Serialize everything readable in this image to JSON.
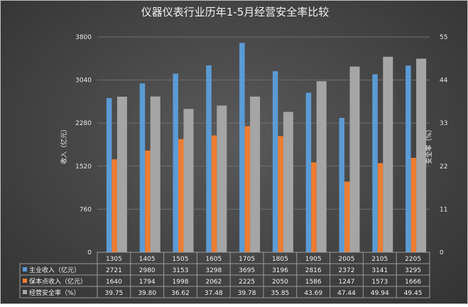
{
  "chart_data": {
    "type": "bar",
    "title": "仪器仪表行业历年1-5月经营安全率比较",
    "ylabel": "收入（亿元）",
    "y2label": "安全率（%）",
    "ylim": [
      0,
      3800
    ],
    "y2lim": [
      0,
      55
    ],
    "yticks": [
      "0",
      "760",
      "1520",
      "2280",
      "3040",
      "3800"
    ],
    "y2ticks": [
      "0",
      "11",
      "22",
      "33",
      "44",
      "55"
    ],
    "categories": [
      "1305",
      "1405",
      "1505",
      "1605",
      "1705",
      "1805",
      "1905",
      "2005",
      "2105",
      "2205"
    ],
    "series": [
      {
        "name": "主业收入（亿元）",
        "axis": "left",
        "color": "#5b9bd5",
        "values": [
          2721,
          2980,
          3153,
          3298,
          3695,
          3196,
          2816,
          2372,
          3141,
          3295
        ],
        "labels": [
          "2721",
          "2980",
          "3153",
          "3298",
          "3695",
          "3196",
          "2816",
          "2372",
          "3141",
          "3295"
        ]
      },
      {
        "name": "保本点收入（亿元）",
        "axis": "left",
        "color": "#ed7d31",
        "values": [
          1640,
          1794,
          1998,
          2062,
          2225,
          2050,
          1586,
          1247,
          1573,
          1666
        ],
        "labels": [
          "1640",
          "1794",
          "1998",
          "2062",
          "2225",
          "2050",
          "1586",
          "1247",
          "1573",
          "1666"
        ]
      },
      {
        "name": "经营安全率（%）",
        "axis": "right",
        "color": "#a5a5a5",
        "values": [
          39.75,
          39.8,
          36.62,
          37.48,
          39.78,
          35.85,
          43.69,
          47.44,
          49.94,
          49.45
        ],
        "labels": [
          "39.75",
          "39.80",
          "36.62",
          "37.48",
          "39.78",
          "35.85",
          "43.69",
          "47.44",
          "49.94",
          "49.45"
        ]
      }
    ],
    "legend": "data-table-below",
    "grid": true
  }
}
